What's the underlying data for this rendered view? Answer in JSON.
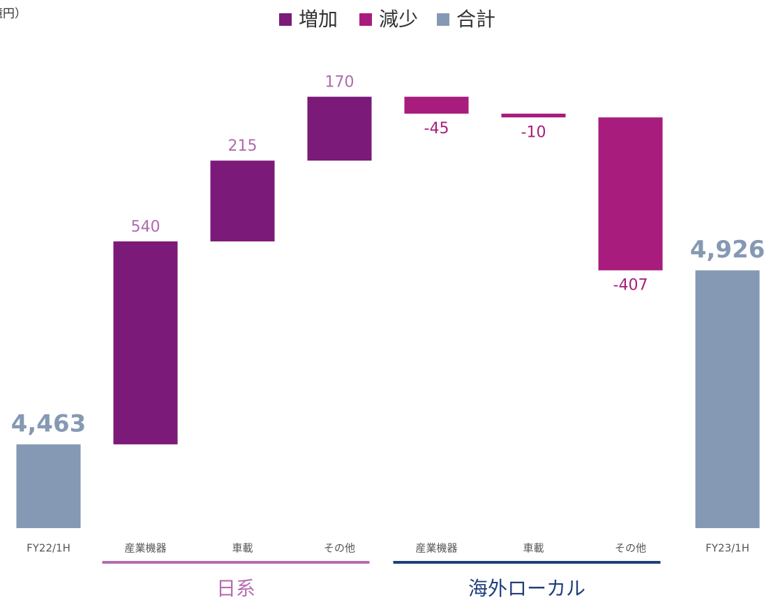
{
  "chart_data": {
    "type": "waterfall",
    "unit": "（億円）",
    "categories": [
      "FY22/1H",
      "産業機器",
      "車載",
      "その他",
      "産業機器",
      "車載",
      "その他",
      "FY23/1H"
    ],
    "series": [
      {
        "name": "増加",
        "color": "#7b1a78",
        "label_color": "#b06aad",
        "values": [
          null,
          540,
          215,
          170,
          null,
          null,
          null,
          null
        ]
      },
      {
        "name": "減少",
        "color": "#a81c7d",
        "label_color": "#a81c7d",
        "values": [
          null,
          null,
          null,
          null,
          -45,
          -10,
          -407,
          null
        ]
      },
      {
        "name": "合計",
        "color": "#8599b4",
        "label_color": "#8599b4",
        "values": [
          4463,
          null,
          null,
          null,
          null,
          null,
          null,
          4926
        ],
        "value_labels": [
          "4,463",
          null,
          null,
          null,
          null,
          null,
          null,
          "4,926"
        ]
      }
    ],
    "groups": [
      {
        "label": "日系",
        "start": 1,
        "end": 3,
        "color": "#b56cb0"
      },
      {
        "label": "海外ローカル",
        "start": 4,
        "end": 6,
        "color": "#1f3f7a"
      }
    ],
    "ylim": [
      4240,
      5560
    ]
  }
}
